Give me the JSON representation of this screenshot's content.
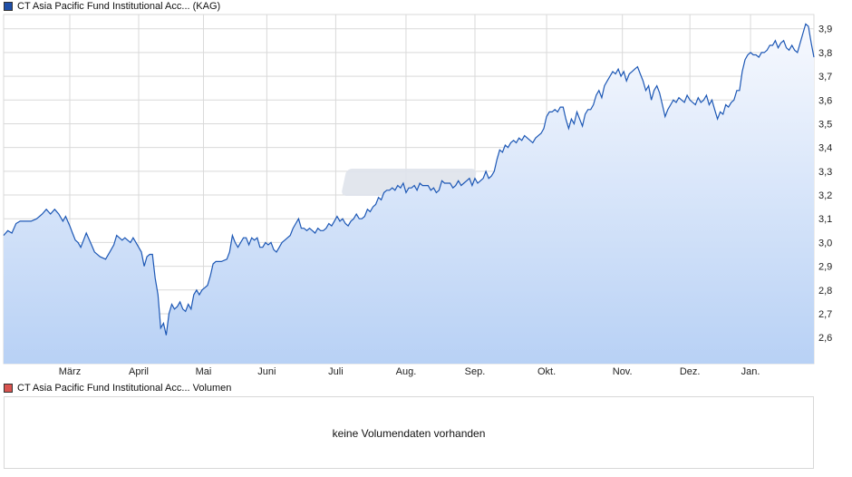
{
  "colors": {
    "price_line": "#1c57b5",
    "area_top": "#f7f9fe",
    "area_bottom": "#b8d1f5",
    "grid": "#d9d9d9",
    "price_swatch": "#1f4fa8",
    "volume_swatch": "#d9534f",
    "watermark": "#dfe4ec"
  },
  "price_legend": {
    "label": "CT Asia Pacific Fund Institutional Acc... (KAG)",
    "swatch_icon": "square-legend-icon"
  },
  "volume_legend": {
    "label": "CT Asia Pacific Fund Institutional Acc... Volumen",
    "swatch_icon": "square-legend-icon"
  },
  "volume_panel": {
    "message": "keine Volumendaten vorhanden"
  },
  "chart_data": {
    "type": "area",
    "series": [
      {
        "name": "CT Asia Pacific Fund Institutional Acc... (KAG)",
        "points": [
          [
            0.0,
            3.03
          ],
          [
            1.5,
            3.05
          ],
          [
            3,
            3.04
          ],
          [
            4.5,
            3.08
          ],
          [
            6,
            3.09
          ],
          [
            8,
            3.09
          ],
          [
            10,
            3.09
          ],
          [
            12,
            3.1
          ],
          [
            14,
            3.12
          ],
          [
            15.5,
            3.14
          ],
          [
            17,
            3.12
          ],
          [
            18.5,
            3.14
          ],
          [
            20,
            3.12
          ],
          [
            21.5,
            3.09
          ],
          [
            22.5,
            3.11
          ],
          [
            24,
            3.07
          ],
          [
            25,
            3.04
          ],
          [
            26,
            3.01
          ],
          [
            27,
            3.0
          ],
          [
            28,
            2.98
          ],
          [
            29,
            3.01
          ],
          [
            30,
            3.04
          ],
          [
            31.5,
            3.0
          ],
          [
            33,
            2.96
          ],
          [
            35,
            2.94
          ],
          [
            37,
            2.93
          ],
          [
            38.5,
            2.96
          ],
          [
            40,
            2.99
          ],
          [
            41,
            3.03
          ],
          [
            42,
            3.02
          ],
          [
            43,
            3.01
          ],
          [
            44,
            3.02
          ],
          [
            45,
            3.01
          ],
          [
            46,
            3.0
          ],
          [
            47,
            3.02
          ],
          [
            48,
            3.0
          ],
          [
            49,
            2.98
          ],
          [
            50,
            2.96
          ],
          [
            51,
            2.9
          ],
          [
            52,
            2.94
          ],
          [
            53,
            2.95
          ],
          [
            54,
            2.95
          ],
          [
            55,
            2.85
          ],
          [
            56,
            2.78
          ],
          [
            57,
            2.64
          ],
          [
            58,
            2.66
          ],
          [
            59,
            2.61
          ],
          [
            60,
            2.7
          ],
          [
            61,
            2.74
          ],
          [
            62,
            2.72
          ],
          [
            63,
            2.73
          ],
          [
            64,
            2.75
          ],
          [
            65,
            2.72
          ],
          [
            66,
            2.71
          ],
          [
            67,
            2.74
          ],
          [
            68,
            2.72
          ],
          [
            69,
            2.78
          ],
          [
            70,
            2.8
          ],
          [
            71,
            2.78
          ],
          [
            72,
            2.8
          ],
          [
            73,
            2.81
          ],
          [
            74,
            2.82
          ],
          [
            75,
            2.86
          ],
          [
            76,
            2.91
          ],
          [
            77,
            2.92
          ],
          [
            79,
            2.92
          ],
          [
            81,
            2.93
          ],
          [
            82,
            2.96
          ],
          [
            83,
            3.03
          ],
          [
            84,
            3.0
          ],
          [
            85,
            2.98
          ],
          [
            86,
            3.0
          ],
          [
            87,
            3.02
          ],
          [
            88,
            3.02
          ],
          [
            89,
            2.99
          ],
          [
            90,
            3.02
          ],
          [
            91,
            3.01
          ],
          [
            92,
            3.02
          ],
          [
            93,
            2.98
          ],
          [
            94,
            2.98
          ],
          [
            95,
            3.0
          ],
          [
            96,
            2.99
          ],
          [
            97,
            3.0
          ],
          [
            98,
            2.97
          ],
          [
            99,
            2.96
          ],
          [
            100,
            2.98
          ],
          [
            101,
            3.0
          ],
          [
            102,
            3.01
          ],
          [
            103,
            3.02
          ],
          [
            104,
            3.03
          ],
          [
            105,
            3.06
          ],
          [
            106,
            3.08
          ],
          [
            107,
            3.1
          ],
          [
            108,
            3.06
          ],
          [
            109,
            3.06
          ],
          [
            110,
            3.05
          ],
          [
            111,
            3.06
          ],
          [
            112,
            3.05
          ],
          [
            113,
            3.04
          ],
          [
            114,
            3.06
          ],
          [
            115,
            3.05
          ],
          [
            116,
            3.05
          ],
          [
            117,
            3.06
          ],
          [
            118,
            3.08
          ],
          [
            119,
            3.07
          ],
          [
            120,
            3.09
          ],
          [
            121,
            3.11
          ],
          [
            122,
            3.09
          ],
          [
            123,
            3.1
          ],
          [
            124,
            3.08
          ],
          [
            125,
            3.07
          ],
          [
            126,
            3.09
          ],
          [
            127,
            3.1
          ],
          [
            128,
            3.12
          ],
          [
            129,
            3.1
          ],
          [
            130,
            3.1
          ],
          [
            131,
            3.11
          ],
          [
            132,
            3.14
          ],
          [
            133,
            3.13
          ],
          [
            134,
            3.15
          ],
          [
            135,
            3.16
          ],
          [
            136,
            3.19
          ],
          [
            137,
            3.18
          ],
          [
            138,
            3.21
          ],
          [
            139,
            3.22
          ],
          [
            140,
            3.22
          ],
          [
            141,
            3.23
          ],
          [
            142,
            3.22
          ],
          [
            143,
            3.24
          ],
          [
            144,
            3.23
          ],
          [
            145,
            3.25
          ],
          [
            146,
            3.21
          ],
          [
            147,
            3.23
          ],
          [
            148,
            3.23
          ],
          [
            149,
            3.24
          ],
          [
            150,
            3.22
          ],
          [
            151,
            3.25
          ],
          [
            152,
            3.24
          ],
          [
            153,
            3.24
          ],
          [
            154,
            3.24
          ],
          [
            155,
            3.22
          ],
          [
            156,
            3.23
          ],
          [
            157,
            3.21
          ],
          [
            158,
            3.22
          ],
          [
            159,
            3.26
          ],
          [
            160,
            3.25
          ],
          [
            161,
            3.25
          ],
          [
            162,
            3.25
          ],
          [
            163,
            3.23
          ],
          [
            164,
            3.24
          ],
          [
            165,
            3.26
          ],
          [
            166,
            3.24
          ],
          [
            167,
            3.25
          ],
          [
            168,
            3.26
          ],
          [
            169,
            3.27
          ],
          [
            170,
            3.24
          ],
          [
            171,
            3.27
          ],
          [
            172,
            3.25
          ],
          [
            173,
            3.26
          ],
          [
            174,
            3.27
          ],
          [
            175,
            3.3
          ],
          [
            176,
            3.27
          ],
          [
            177,
            3.28
          ],
          [
            178,
            3.3
          ],
          [
            179,
            3.35
          ],
          [
            180,
            3.39
          ],
          [
            181,
            3.38
          ],
          [
            182,
            3.41
          ],
          [
            183,
            3.4
          ],
          [
            184,
            3.42
          ],
          [
            185,
            3.43
          ],
          [
            186,
            3.42
          ],
          [
            187,
            3.44
          ],
          [
            188,
            3.43
          ],
          [
            189,
            3.45
          ],
          [
            190,
            3.44
          ],
          [
            191,
            3.43
          ],
          [
            192,
            3.42
          ],
          [
            193,
            3.44
          ],
          [
            194,
            3.45
          ],
          [
            195,
            3.46
          ],
          [
            196,
            3.48
          ],
          [
            197,
            3.53
          ],
          [
            198,
            3.55
          ],
          [
            199,
            3.55
          ],
          [
            200,
            3.56
          ],
          [
            201,
            3.55
          ],
          [
            202,
            3.57
          ],
          [
            203,
            3.57
          ],
          [
            204,
            3.52
          ],
          [
            205,
            3.48
          ],
          [
            206,
            3.52
          ],
          [
            207,
            3.5
          ],
          [
            208,
            3.55
          ],
          [
            209,
            3.52
          ],
          [
            210,
            3.49
          ],
          [
            211,
            3.54
          ],
          [
            212,
            3.56
          ],
          [
            213,
            3.56
          ],
          [
            214,
            3.58
          ],
          [
            215,
            3.62
          ],
          [
            216,
            3.64
          ],
          [
            217,
            3.61
          ],
          [
            218,
            3.66
          ],
          [
            219,
            3.68
          ],
          [
            220,
            3.7
          ],
          [
            221,
            3.72
          ],
          [
            222,
            3.71
          ],
          [
            223,
            3.73
          ],
          [
            224,
            3.7
          ],
          [
            225,
            3.72
          ],
          [
            226,
            3.68
          ],
          [
            227,
            3.71
          ],
          [
            228,
            3.72
          ],
          [
            229,
            3.73
          ],
          [
            230,
            3.74
          ],
          [
            231,
            3.71
          ],
          [
            232,
            3.68
          ],
          [
            233,
            3.64
          ],
          [
            234,
            3.66
          ],
          [
            235,
            3.6
          ],
          [
            236,
            3.64
          ],
          [
            237,
            3.66
          ],
          [
            238,
            3.63
          ],
          [
            239,
            3.58
          ],
          [
            240,
            3.53
          ],
          [
            241,
            3.56
          ],
          [
            242,
            3.58
          ],
          [
            243,
            3.6
          ],
          [
            244,
            3.59
          ],
          [
            245,
            3.61
          ],
          [
            246,
            3.6
          ],
          [
            247,
            3.59
          ],
          [
            248,
            3.62
          ],
          [
            249,
            3.6
          ],
          [
            250,
            3.59
          ],
          [
            251,
            3.58
          ],
          [
            252,
            3.61
          ],
          [
            253,
            3.59
          ],
          [
            254,
            3.6
          ],
          [
            255,
            3.62
          ],
          [
            256,
            3.58
          ],
          [
            257,
            3.6
          ],
          [
            258,
            3.56
          ],
          [
            259,
            3.52
          ],
          [
            260,
            3.55
          ],
          [
            261,
            3.54
          ],
          [
            262,
            3.58
          ],
          [
            263,
            3.57
          ],
          [
            264,
            3.59
          ],
          [
            265,
            3.6
          ],
          [
            266,
            3.64
          ],
          [
            267,
            3.64
          ],
          [
            268,
            3.72
          ],
          [
            269,
            3.77
          ],
          [
            270,
            3.79
          ],
          [
            271,
            3.8
          ],
          [
            272,
            3.79
          ],
          [
            273,
            3.79
          ],
          [
            274,
            3.78
          ],
          [
            275,
            3.8
          ],
          [
            276,
            3.8
          ],
          [
            277,
            3.81
          ],
          [
            278,
            3.83
          ],
          [
            279,
            3.83
          ],
          [
            280,
            3.85
          ],
          [
            281,
            3.82
          ],
          [
            282,
            3.84
          ],
          [
            283,
            3.85
          ],
          [
            284,
            3.82
          ],
          [
            285,
            3.81
          ],
          [
            286,
            3.83
          ],
          [
            287,
            3.81
          ],
          [
            288,
            3.8
          ],
          [
            289,
            3.84
          ],
          [
            290,
            3.88
          ],
          [
            291,
            3.92
          ],
          [
            292,
            3.91
          ],
          [
            293,
            3.84
          ],
          [
            294,
            3.78
          ]
        ]
      }
    ],
    "x_ticks": [
      {
        "label": "März",
        "x": 24
      },
      {
        "label": "April",
        "x": 49
      },
      {
        "label": "Mai",
        "x": 72.5
      },
      {
        "label": "Juni",
        "x": 95.5
      },
      {
        "label": "Juli",
        "x": 120.5
      },
      {
        "label": "Aug.",
        "x": 146
      },
      {
        "label": "Sep.",
        "x": 171
      },
      {
        "label": "Okt.",
        "x": 197
      },
      {
        "label": "Nov.",
        "x": 224.5
      },
      {
        "label": "Dez.",
        "x": 249
      },
      {
        "label": "Jan.",
        "x": 271
      }
    ],
    "y_ticks": [
      "2,6",
      "2,7",
      "2,8",
      "2,9",
      "3,0",
      "3,1",
      "3,2",
      "3,3",
      "3,4",
      "3,5",
      "3,6",
      "3,7",
      "3,8",
      "3,9"
    ],
    "y_tick_values": [
      2.6,
      2.7,
      2.8,
      2.9,
      3.0,
      3.1,
      3.2,
      3.3,
      3.4,
      3.5,
      3.6,
      3.7,
      3.8,
      3.9
    ],
    "xlim": [
      0,
      294
    ],
    "ylim": [
      2.49,
      3.96
    ],
    "grid": true
  }
}
